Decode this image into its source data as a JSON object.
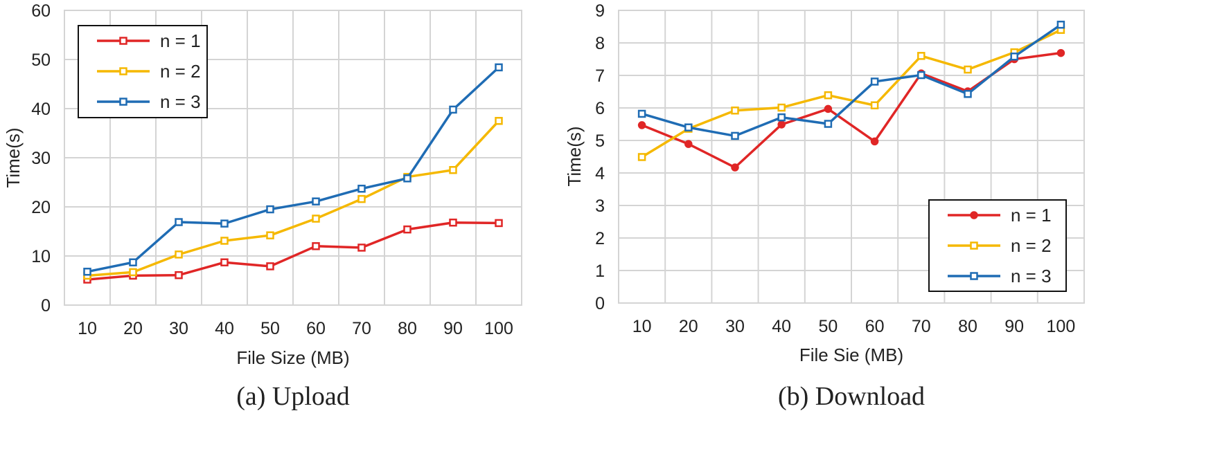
{
  "chart_data": [
    {
      "type": "line",
      "caption": "(a) Upload",
      "xlabel": "File Size (MB)",
      "ylabel": "Time(s)",
      "categories": [
        "10",
        "20",
        "30",
        "40",
        "50",
        "60",
        "70",
        "80",
        "90",
        "100"
      ],
      "ylim": [
        0,
        60
      ],
      "yticks": [
        "0",
        "10",
        "20",
        "30",
        "40",
        "50",
        "60"
      ],
      "legend_position": "top-left",
      "series": [
        {
          "name": "n = 1",
          "color": "#e02626",
          "marker": "square",
          "values": [
            5.2,
            6.0,
            6.1,
            8.7,
            7.9,
            12.0,
            11.7,
            15.4,
            16.8,
            16.7
          ]
        },
        {
          "name": "n = 2",
          "color": "#f5b800",
          "marker": "square",
          "values": [
            6.0,
            6.7,
            10.3,
            13.1,
            14.2,
            17.6,
            21.6,
            26.1,
            27.5,
            37.5
          ]
        },
        {
          "name": "n = 3",
          "color": "#1f6cb4",
          "marker": "square",
          "values": [
            6.8,
            8.7,
            16.9,
            16.6,
            19.5,
            21.1,
            23.7,
            25.8,
            39.8,
            48.4
          ]
        }
      ]
    },
    {
      "type": "line",
      "caption": "(b) Download",
      "xlabel": "File Sie (MB)",
      "ylabel": "Time(s)",
      "categories": [
        "10",
        "20",
        "30",
        "40",
        "50",
        "60",
        "70",
        "80",
        "90",
        "100"
      ],
      "ylim": [
        0,
        9
      ],
      "yticks": [
        "0",
        "1",
        "2",
        "3",
        "4",
        "5",
        "6",
        "7",
        "8",
        "9"
      ],
      "legend_position": "bottom-right",
      "series": [
        {
          "name": "n = 1",
          "color": "#e02626",
          "marker": "circle",
          "values": [
            5.47,
            4.89,
            4.17,
            5.49,
            5.97,
            4.97,
            7.06,
            6.51,
            7.5,
            7.69
          ]
        },
        {
          "name": "n = 2",
          "color": "#f5b800",
          "marker": "square",
          "values": [
            4.49,
            5.36,
            5.92,
            6.01,
            6.39,
            6.08,
            7.6,
            7.18,
            7.71,
            8.4
          ]
        },
        {
          "name": "n = 3",
          "color": "#1f6cb4",
          "marker": "square",
          "values": [
            5.82,
            5.4,
            5.14,
            5.71,
            5.51,
            6.81,
            7.01,
            6.43,
            7.58,
            8.56
          ]
        }
      ]
    }
  ]
}
